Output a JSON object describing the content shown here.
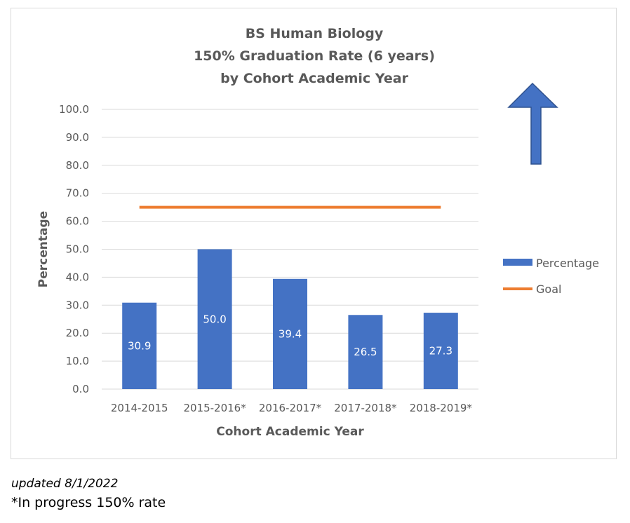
{
  "chart_data": {
    "type": "bar",
    "title_lines": [
      "BS Human Biology",
      "150% Graduation Rate (6 years)",
      "by Cohort Academic Year"
    ],
    "xlabel": "Cohort Academic Year",
    "ylabel": "Percentage",
    "categories": [
      "2014-2015",
      "2015-2016*",
      "2016-2017*",
      "2017-2018*",
      "2018-2019*"
    ],
    "series": [
      {
        "name": "Percentage",
        "type": "bar",
        "values": [
          30.9,
          50.0,
          39.4,
          26.5,
          27.3
        ],
        "color": "#4472c4"
      },
      {
        "name": "Goal",
        "type": "line",
        "values": [
          65,
          65,
          65,
          65,
          65
        ],
        "color": "#ed7d31"
      }
    ],
    "data_labels": [
      "30.9",
      "50.0",
      "39.4",
      "26.5",
      "27.3"
    ],
    "ylim": [
      0,
      100
    ],
    "yticks": [
      "0.0",
      "10.0",
      "20.0",
      "30.0",
      "40.0",
      "50.0",
      "60.0",
      "70.0",
      "80.0",
      "90.0",
      "100.0"
    ],
    "grid": true,
    "legend_position": "right",
    "annotation_icon": "up-arrow-icon"
  },
  "footnotes": {
    "updated": "updated 8/1/2022",
    "in_progress": "*In progress 150% rate"
  }
}
